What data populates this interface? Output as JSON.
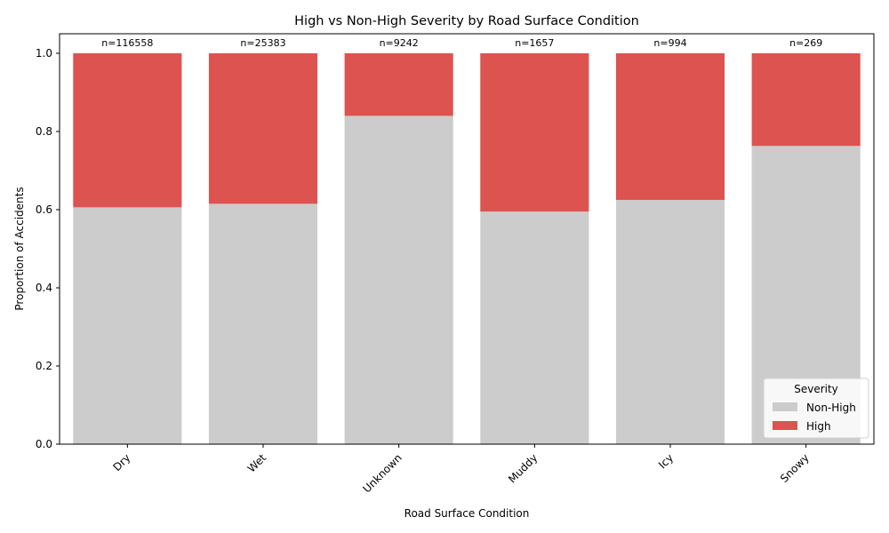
{
  "chart_data": {
    "type": "bar",
    "stacked": true,
    "title": "High vs Non-High Severity by Road Surface Condition",
    "xlabel": "Road Surface Condition",
    "ylabel": "Proportion of Accidents",
    "ylim": [
      0,
      1.05
    ],
    "yticks": [
      "0.0",
      "0.2",
      "0.4",
      "0.6",
      "0.8",
      "1.0"
    ],
    "categories": [
      "Dry",
      "Wet",
      "Unknown",
      "Muddy",
      "Icy",
      "Snowy"
    ],
    "counts": [
      "n=116558",
      "n=25383",
      "n=9242",
      "n=1657",
      "n=994",
      "n=269"
    ],
    "series": [
      {
        "name": "Non-High",
        "color": "#cccccc",
        "values": [
          0.606,
          0.615,
          0.84,
          0.595,
          0.625,
          0.763
        ]
      },
      {
        "name": "High",
        "color": "#dc5350",
        "values": [
          0.394,
          0.385,
          0.16,
          0.405,
          0.375,
          0.237
        ]
      }
    ],
    "legend": {
      "title": "Severity",
      "position": "lower-right"
    }
  }
}
